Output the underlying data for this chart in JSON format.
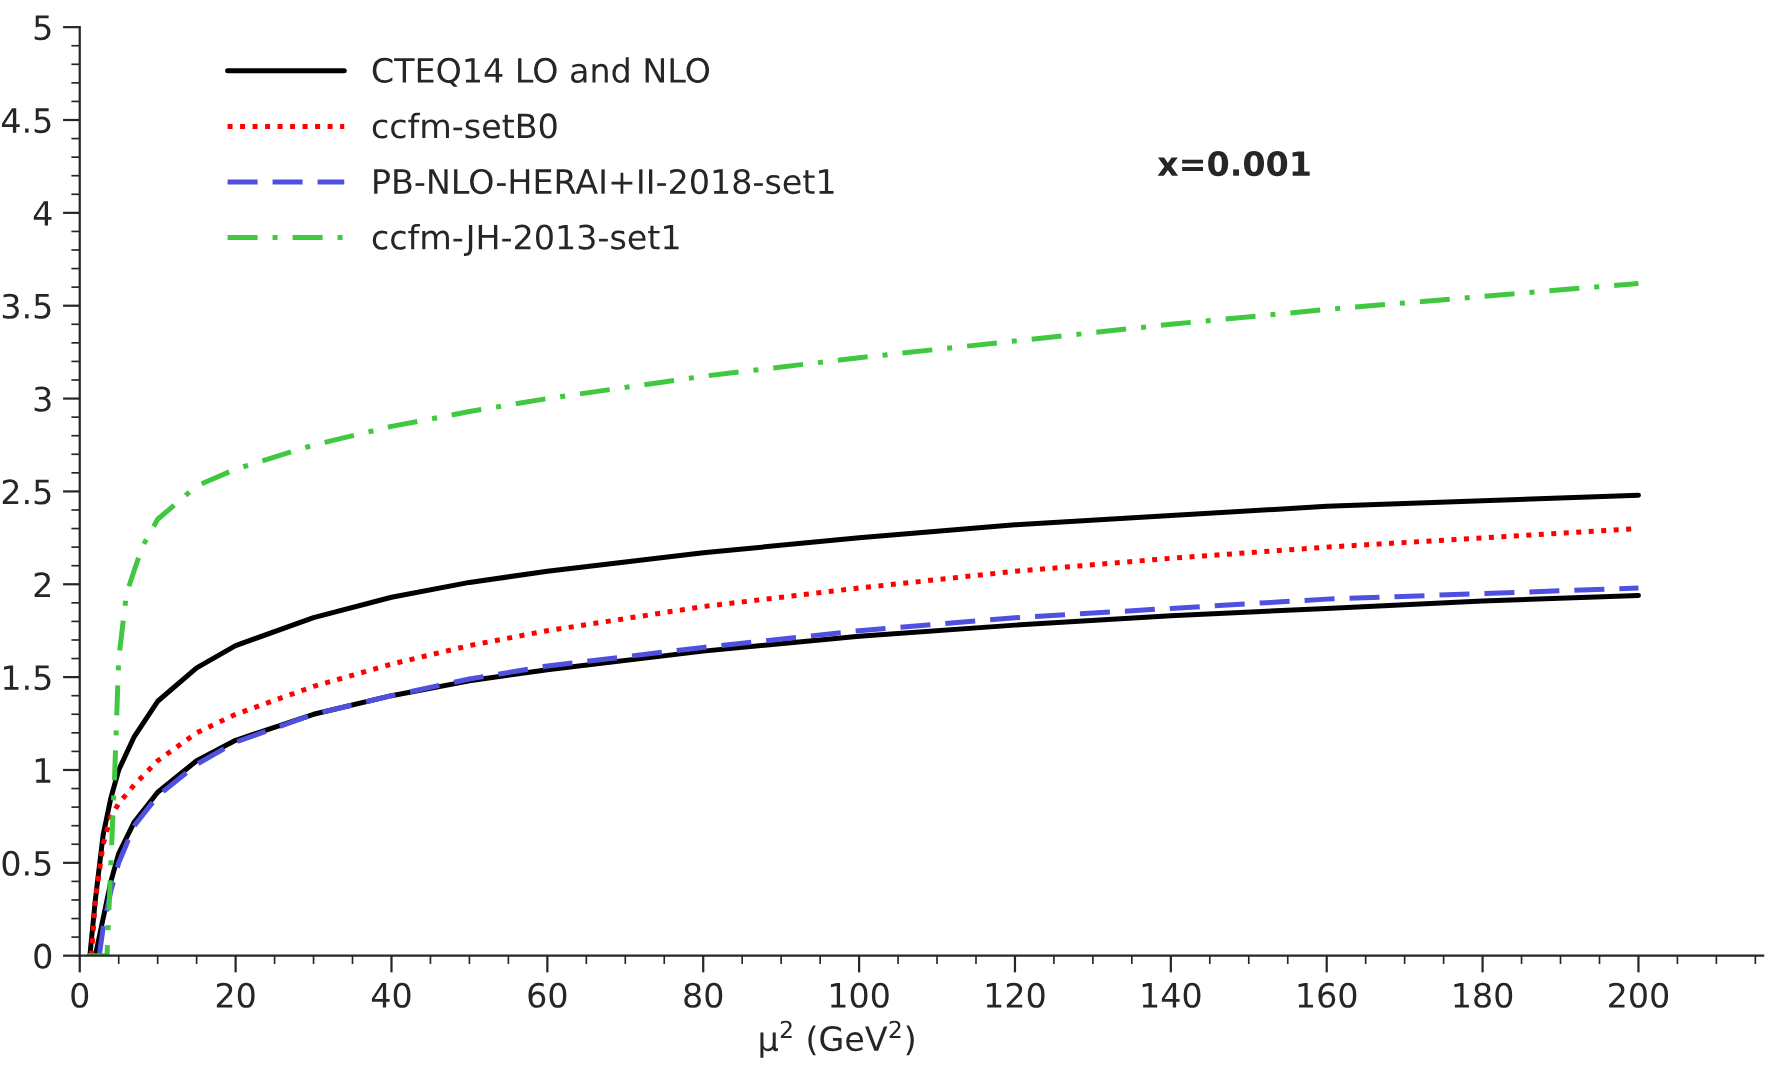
{
  "chart_data": {
    "type": "line",
    "xlabel": "μ$^{2}$ (GeV$^{2}$)",
    "annotations": [
      "x=0.001"
    ],
    "xlim": [
      0,
      216
    ],
    "xticks": [
      0,
      20,
      40,
      60,
      80,
      100,
      120,
      140,
      160,
      180,
      200
    ],
    "ylim": [
      0,
      5
    ],
    "yticks": [
      0,
      0.5,
      1,
      1.5,
      2,
      2.5,
      3,
      3.5,
      4,
      4.5,
      5
    ],
    "grid": false,
    "legend": "top left",
    "marker": "none",
    "series": [
      {
        "name": "CTEQ14 LO and NLO",
        "color": "#000000",
        "line_style": "solid",
        "x": [
          1.3,
          2,
          3,
          4,
          5,
          7,
          10,
          15,
          20,
          30,
          40,
          50,
          60,
          80,
          100,
          120,
          140,
          160,
          180,
          200
        ],
        "values": [
          0,
          0.3,
          0.65,
          0.85,
          1.0,
          1.18,
          1.37,
          1.55,
          1.67,
          1.82,
          1.93,
          2.01,
          2.07,
          2.17,
          2.25,
          2.32,
          2.37,
          2.42,
          2.45,
          2.48
        ]
      },
      {
        "color": "#000000",
        "line_style": "solid",
        "x": [
          2,
          3,
          4,
          5,
          7,
          10,
          15,
          20,
          30,
          40,
          50,
          60,
          80,
          100,
          120,
          140,
          160,
          180,
          200
        ],
        "values": [
          0,
          0.2,
          0.4,
          0.55,
          0.72,
          0.88,
          1.05,
          1.16,
          1.3,
          1.4,
          1.48,
          1.54,
          1.64,
          1.72,
          1.78,
          1.83,
          1.87,
          1.91,
          1.94
        ]
      },
      {
        "name": "ccfm-setB0",
        "color": "#ff0000",
        "line_style": "dotted",
        "x": [
          1.5,
          2,
          3,
          4,
          5,
          7,
          10,
          15,
          20,
          30,
          40,
          50,
          60,
          80,
          100,
          120,
          140,
          160,
          180,
          200
        ],
        "values": [
          0,
          0.3,
          0.6,
          0.75,
          0.82,
          0.92,
          1.05,
          1.2,
          1.3,
          1.45,
          1.57,
          1.67,
          1.75,
          1.88,
          1.98,
          2.07,
          2.14,
          2.2,
          2.25,
          2.3
        ]
      },
      {
        "name": "PB-NLO-HERAI+II-2018-set1",
        "color": "#5050e0",
        "line_style": "dashed",
        "x": [
          2.5,
          3,
          4,
          5,
          7,
          10,
          15,
          20,
          30,
          40,
          50,
          60,
          80,
          100,
          120,
          140,
          160,
          180,
          200
        ],
        "values": [
          0,
          0.15,
          0.35,
          0.5,
          0.7,
          0.86,
          1.03,
          1.15,
          1.3,
          1.4,
          1.49,
          1.56,
          1.66,
          1.75,
          1.82,
          1.87,
          1.92,
          1.95,
          1.98
        ]
      },
      {
        "name": "ccfm-JH-2013-set1",
        "color": "#40c840",
        "line_style": "dashdot",
        "x": [
          1,
          3.5,
          4.5,
          5,
          6,
          8,
          10,
          15,
          20,
          30,
          40,
          50,
          60,
          80,
          100,
          120,
          140,
          160,
          180,
          200
        ],
        "values": [
          0,
          0,
          1.0,
          1.6,
          1.95,
          2.2,
          2.35,
          2.53,
          2.62,
          2.75,
          2.85,
          2.93,
          3.0,
          3.12,
          3.22,
          3.31,
          3.4,
          3.48,
          3.55,
          3.62
        ]
      }
    ]
  }
}
